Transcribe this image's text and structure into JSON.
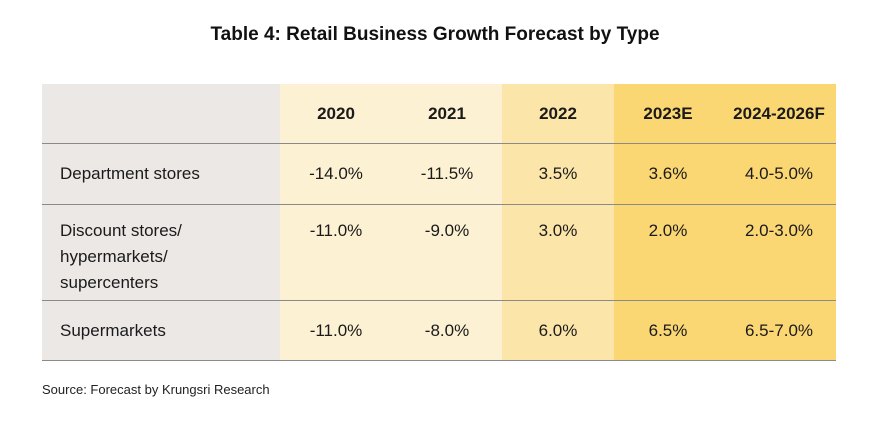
{
  "title": "Table 4: Retail Business Growth Forecast by Type",
  "source": "Source: Forecast by Krungsri Research",
  "colors": {
    "label_column": "#ece8e6",
    "actual_years": "#fdf1d3",
    "year_2022": "#fce5a9",
    "forecast": "#fbd774",
    "divider": "#8a8a8a"
  },
  "chart_data": {
    "type": "table",
    "title": "Table 4: Retail Business Growth Forecast by Type",
    "columns": [
      "",
      "2020",
      "2021",
      "2022",
      "2023E",
      "2024-2026F"
    ],
    "rows": [
      {
        "label": "Department stores",
        "label_lines": [
          "Department stores"
        ],
        "values": [
          "-14.0%",
          "-11.5%",
          "3.5%",
          "3.6%",
          "4.0-5.0%"
        ]
      },
      {
        "label": "Discount stores/ hypermarkets/ supercenters",
        "label_lines": [
          "Discount stores/",
          "hypermarkets/",
          "supercenters"
        ],
        "values": [
          "-11.0%",
          "-9.0%",
          "3.0%",
          "2.0%",
          "2.0-3.0%"
        ]
      },
      {
        "label": "Supermarkets",
        "label_lines": [
          "Supermarkets"
        ],
        "values": [
          "-11.0%",
          "-8.0%",
          "6.0%",
          "6.5%",
          "6.5-7.0%"
        ]
      }
    ],
    "source": "Source: Forecast by Krungsri Research"
  }
}
